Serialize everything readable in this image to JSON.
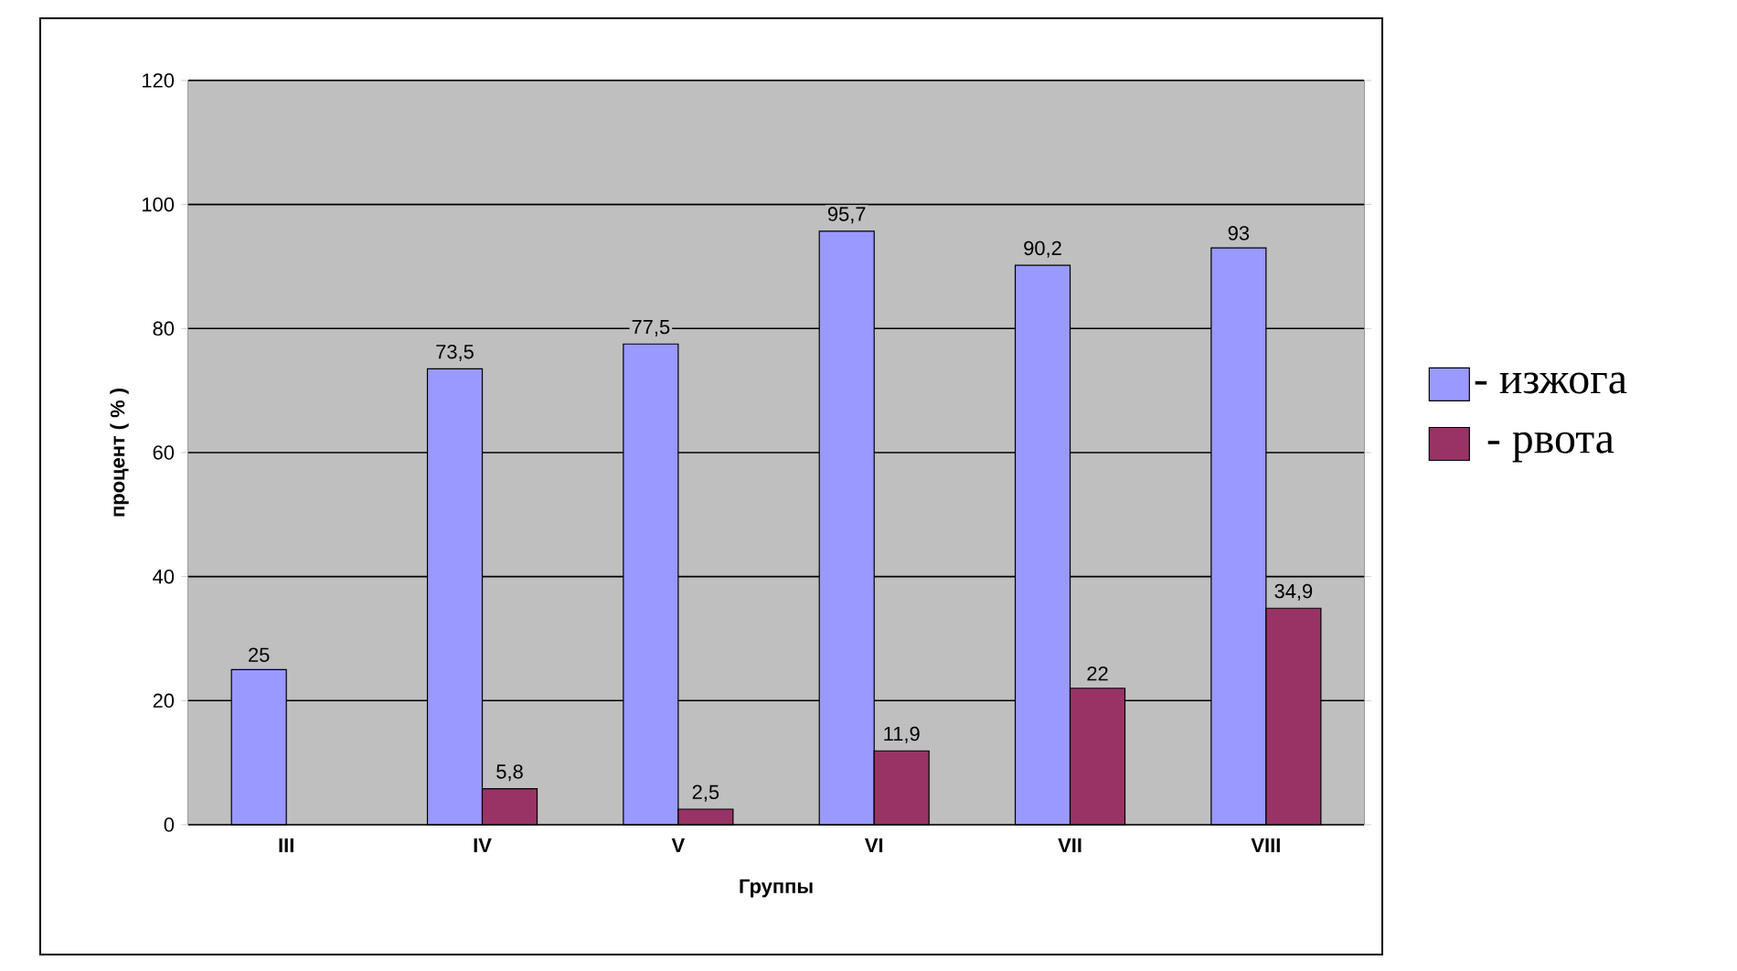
{
  "chart_data": {
    "type": "bar",
    "xlabel": "Группы",
    "ylabel": "процент ( % )",
    "categories": [
      "III",
      "IV",
      "V",
      "VI",
      "VII",
      "VIII"
    ],
    "series": [
      {
        "name": "- изжога",
        "color": "#9999ff",
        "values": [
          25,
          73.5,
          77.5,
          95.7,
          90.2,
          93
        ],
        "value_labels": [
          "25",
          "73,5",
          "77,5",
          "95,7",
          "90,2",
          "93"
        ]
      },
      {
        "name": "- рвота",
        "color": "#993366",
        "values": [
          null,
          5.8,
          2.5,
          11.9,
          22,
          34.9
        ],
        "value_labels": [
          null,
          "5,8",
          "2,5",
          "11,9",
          "22",
          "34,9"
        ]
      }
    ],
    "ylim": [
      0,
      120
    ],
    "yticks": [
      0,
      20,
      40,
      60,
      80,
      100,
      120
    ],
    "grid": "y",
    "legend": "right"
  }
}
